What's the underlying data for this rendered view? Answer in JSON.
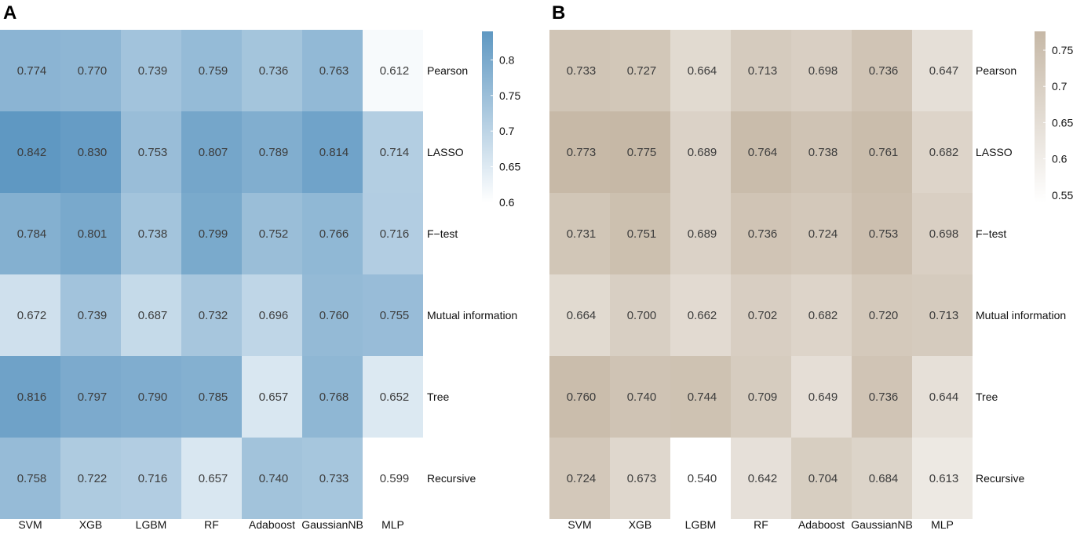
{
  "figure": {
    "panel_labels": [
      "A",
      "B"
    ]
  },
  "chart_data": [
    {
      "type": "heatmap",
      "panel": "A",
      "columns": [
        "SVM",
        "XGB",
        "LGBM",
        "RF",
        "Adaboost",
        "GaussianNB",
        "MLP"
      ],
      "rows": [
        "Pearson",
        "LASSO",
        "F−test",
        "Mutual information",
        "Tree",
        "Recursive"
      ],
      "values": [
        [
          0.774,
          0.77,
          0.739,
          0.759,
          0.736,
          0.763,
          0.612
        ],
        [
          0.842,
          0.83,
          0.753,
          0.807,
          0.789,
          0.814,
          0.714
        ],
        [
          0.784,
          0.801,
          0.738,
          0.799,
          0.752,
          0.766,
          0.716
        ],
        [
          0.672,
          0.739,
          0.687,
          0.732,
          0.696,
          0.76,
          0.755
        ],
        [
          0.816,
          0.797,
          0.79,
          0.785,
          0.657,
          0.768,
          0.652
        ],
        [
          0.758,
          0.722,
          0.716,
          0.657,
          0.74,
          0.733,
          0.599
        ]
      ],
      "colorbar": {
        "range": [
          0.6,
          0.84
        ],
        "ticks": [
          0.8,
          0.75,
          0.7,
          0.65,
          0.6
        ],
        "tick_labels": [
          "0.8",
          "0.75",
          "0.7",
          "0.65",
          "0.6"
        ],
        "color_low": "#ffffff",
        "color_high": "#5f98c2"
      }
    },
    {
      "type": "heatmap",
      "panel": "B",
      "columns": [
        "SVM",
        "XGB",
        "LGBM",
        "RF",
        "Adaboost",
        "GaussianNB",
        "MLP"
      ],
      "rows": [
        "Pearson",
        "LASSO",
        "F−test",
        "Mutual information",
        "Tree",
        "Recursive"
      ],
      "values": [
        [
          0.733,
          0.727,
          0.664,
          0.713,
          0.698,
          0.736,
          0.647
        ],
        [
          0.773,
          0.775,
          0.689,
          0.764,
          0.738,
          0.761,
          0.682
        ],
        [
          0.731,
          0.751,
          0.689,
          0.736,
          0.724,
          0.753,
          0.698
        ],
        [
          0.664,
          0.7,
          0.662,
          0.702,
          0.682,
          0.72,
          0.713
        ],
        [
          0.76,
          0.74,
          0.744,
          0.709,
          0.649,
          0.736,
          0.644
        ],
        [
          0.724,
          0.673,
          0.54,
          0.642,
          0.704,
          0.684,
          0.613
        ]
      ],
      "colorbar": {
        "range": [
          0.54,
          0.776
        ],
        "ticks": [
          0.75,
          0.7,
          0.65,
          0.6,
          0.55
        ],
        "tick_labels": [
          "0.75",
          "0.7",
          "0.65",
          "0.6",
          "0.55"
        ],
        "color_low": "#ffffff",
        "color_high": "#c6b8a6"
      }
    }
  ]
}
